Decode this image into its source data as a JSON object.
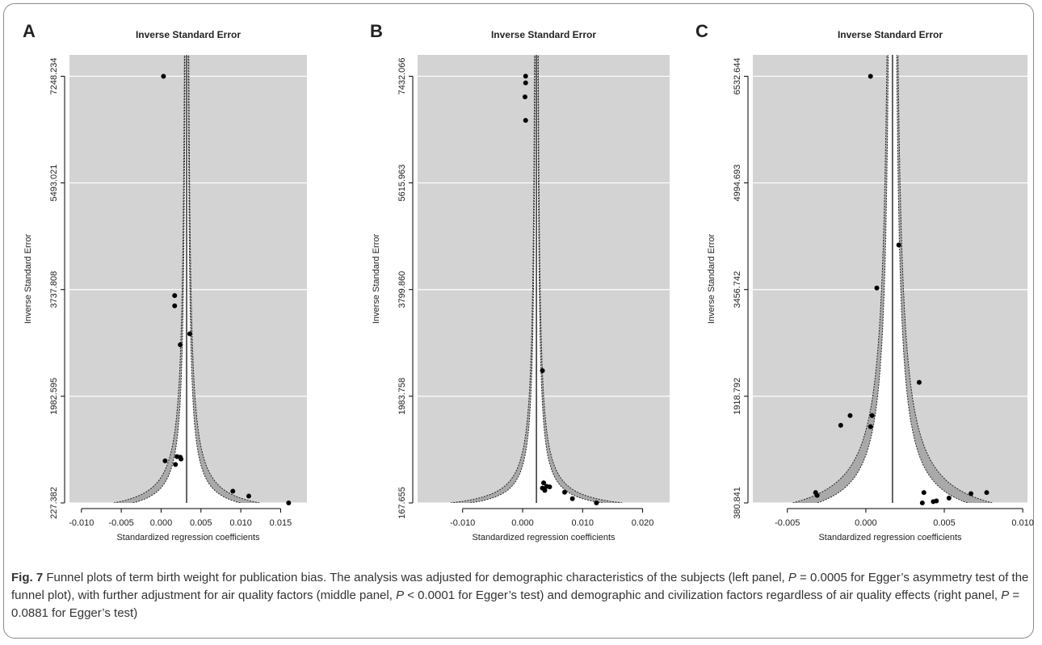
{
  "chart_data": [
    {
      "type": "scatter",
      "panel_letter": "A",
      "title": "Inverse Standard Error",
      "xlabel": "Standardized regression coefficients",
      "ylabel": "Inverse Standard Error",
      "xlim": [
        -0.0115,
        0.0183
      ],
      "ylim": [
        227.382,
        7248.234
      ],
      "xticks": [
        "-0.010",
        "-0.005",
        "0.000",
        "0.005",
        "0.010",
        "0.015"
      ],
      "xtick_values": [
        -0.01,
        -0.005,
        0.0,
        0.005,
        0.01,
        0.015
      ],
      "yticks": [
        "227.382",
        "1982.595",
        "3737.808",
        "5493.021",
        "7248.234"
      ],
      "pooled_estimate": 0.0032,
      "funnel_half_width_k": 2.08,
      "funnel_band_k": 0.55,
      "points": [
        {
          "x": 0.0003,
          "y": 7248
        },
        {
          "x": 0.0017,
          "y": 3640
        },
        {
          "x": 0.0017,
          "y": 3470
        },
        {
          "x": 0.0036,
          "y": 3010
        },
        {
          "x": 0.0024,
          "y": 2830
        },
        {
          "x": 0.0005,
          "y": 920
        },
        {
          "x": 0.0018,
          "y": 860
        },
        {
          "x": 0.0025,
          "y": 950
        },
        {
          "x": 0.002,
          "y": 990
        },
        {
          "x": 0.0024,
          "y": 980
        },
        {
          "x": 0.009,
          "y": 420
        },
        {
          "x": 0.011,
          "y": 340
        },
        {
          "x": 0.016,
          "y": 227
        }
      ]
    },
    {
      "type": "scatter",
      "panel_letter": "B",
      "title": "Inverse Standard Error",
      "xlabel": "Standardized regression coefficients",
      "ylabel": "Inverse Standard Error",
      "xlim": [
        -0.0175,
        0.0245
      ],
      "ylim": [
        167.655,
        7432.066
      ],
      "xticks": [
        "-0.010",
        "0.000",
        "0.010",
        "0.020"
      ],
      "xtick_values": [
        -0.01,
        0.0,
        0.01,
        0.02
      ],
      "yticks": [
        "167.655",
        "1983.758",
        "3799.860",
        "5615.963",
        "7432.066"
      ],
      "pooled_estimate": 0.0023,
      "funnel_half_width_k": 2.4,
      "funnel_band_k": 0.55,
      "points": [
        {
          "x": 0.0005,
          "y": 7432
        },
        {
          "x": 0.0005,
          "y": 7320
        },
        {
          "x": 0.0004,
          "y": 7080
        },
        {
          "x": 0.0005,
          "y": 6680
        },
        {
          "x": 0.0033,
          "y": 2420
        },
        {
          "x": 0.0035,
          "y": 510
        },
        {
          "x": 0.004,
          "y": 450
        },
        {
          "x": 0.0033,
          "y": 420
        },
        {
          "x": 0.0037,
          "y": 380
        },
        {
          "x": 0.0045,
          "y": 440
        },
        {
          "x": 0.007,
          "y": 350
        },
        {
          "x": 0.0083,
          "y": 240
        },
        {
          "x": 0.0123,
          "y": 168
        }
      ]
    },
    {
      "type": "scatter",
      "panel_letter": "C",
      "title": "Inverse Standard Error",
      "xlabel": "Standardized regression coefficients",
      "ylabel": "Inverse Standard Error",
      "xlim": [
        -0.0072,
        0.0103
      ],
      "ylim": [
        380.841,
        6532.644
      ],
      "xticks": [
        "-0.005",
        "0.000",
        "0.005",
        "0.010"
      ],
      "xtick_values": [
        -0.005,
        0.0,
        0.005,
        0.01
      ],
      "yticks": [
        "380.841",
        "1918.792",
        "3456.742",
        "4994.693",
        "6532.644"
      ],
      "pooled_estimate": 0.0017,
      "funnel_half_width_k": 2.42,
      "funnel_band_k": 0.6,
      "points": [
        {
          "x": 0.0003,
          "y": 6532
        },
        {
          "x": 0.0021,
          "y": 4100
        },
        {
          "x": 0.0007,
          "y": 3480
        },
        {
          "x": 0.0034,
          "y": 2120
        },
        {
          "x": 0.0004,
          "y": 1640
        },
        {
          "x": 0.0003,
          "y": 1480
        },
        {
          "x": -0.001,
          "y": 1640
        },
        {
          "x": -0.0016,
          "y": 1500
        },
        {
          "x": -0.0032,
          "y": 530
        },
        {
          "x": -0.0031,
          "y": 490
        },
        {
          "x": 0.0037,
          "y": 530
        },
        {
          "x": 0.0036,
          "y": 381
        },
        {
          "x": 0.0043,
          "y": 400
        },
        {
          "x": 0.0045,
          "y": 410
        },
        {
          "x": 0.0053,
          "y": 450
        },
        {
          "x": 0.0067,
          "y": 515
        },
        {
          "x": 0.0077,
          "y": 530
        }
      ]
    }
  ],
  "caption": {
    "fig_label": "Fig. 7",
    "text_1": " Funnel plots of term birth weight for publication bias. The analysis was adjusted for demographic characteristics of the subjects (left panel, ",
    "p_symbol_1": "P",
    "text_2": " = 0.0005 for Egger’s asymmetry test of the funnel plot), with further adjustment for air quality factors (middle panel, ",
    "p_symbol_2": "P",
    "text_3": " < 0.0001 for Egger’s test) and demographic and civilization factors regardless of air quality effects (right panel, ",
    "p_symbol_3": "P",
    "text_4": " = 0.0881 for Egger’s test)"
  },
  "colors": {
    "panel_bg": "#d3d3d3",
    "gridline": "#ffffff",
    "funnel_fill": "#ffffff",
    "funnel_band": "#a9a9a9",
    "funnel_line": "#222222",
    "pooled_line": "#111111",
    "point": "#000000"
  }
}
